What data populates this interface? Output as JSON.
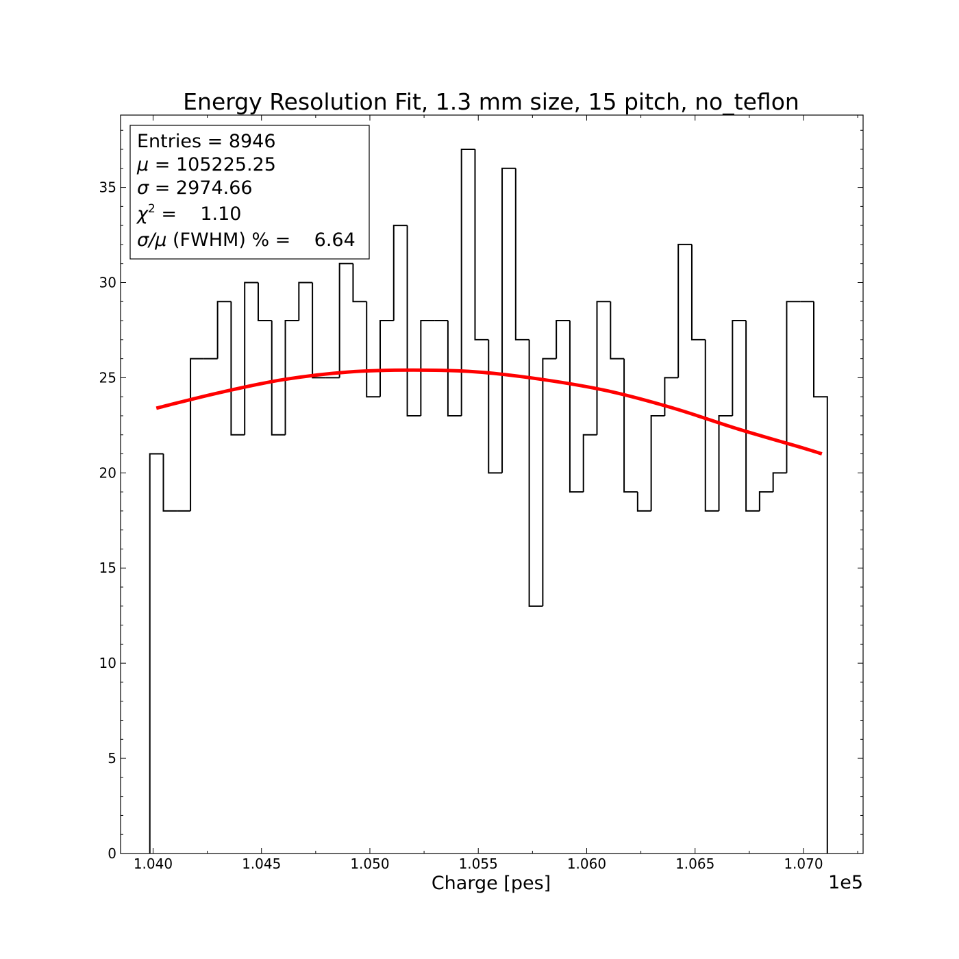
{
  "chart_data": {
    "type": "bar",
    "title": "Energy Resolution Fit, 1.3 mm size, 15 pitch, no_teflon",
    "xlabel": "Charge [pes]",
    "ylabel": "",
    "x_offset_label": "1e5",
    "x_tick_labels": [
      "1.040",
      "1.045",
      "1.050",
      "1.055",
      "1.060",
      "1.065",
      "1.070"
    ],
    "y_tick_labels": [
      "0",
      "5",
      "10",
      "15",
      "20",
      "25",
      "30",
      "35"
    ],
    "xlim": [
      103850,
      107275
    ],
    "ylim": [
      0,
      38.8
    ],
    "grid": false,
    "histogram": {
      "x_start": 103985,
      "bin_width": 62.5,
      "counts": [
        21,
        18,
        18,
        26,
        26,
        29,
        22,
        30,
        28,
        22,
        28,
        30,
        25,
        25,
        31,
        29,
        24,
        28,
        33,
        23,
        28,
        28,
        23,
        37,
        27,
        20,
        36,
        27,
        13,
        26,
        28,
        19,
        22,
        29,
        26,
        19,
        18,
        23,
        25,
        32,
        27,
        18,
        23,
        28,
        18,
        19,
        20,
        29,
        29,
        24
      ],
      "color": "#000000"
    },
    "fit": {
      "color": "#ff0000",
      "x": [
        104015,
        104300,
        104600,
        104900,
        105200,
        105500,
        105800,
        106100,
        106400,
        106700,
        107000,
        107085
      ],
      "y": [
        23.4,
        24.2,
        24.9,
        25.3,
        25.4,
        25.3,
        24.9,
        24.3,
        23.4,
        22.3,
        21.3,
        21.0
      ]
    },
    "stats_box": {
      "entries": "Entries = 8946",
      "mu_symbol": "μ",
      "mu_rest": " = 105225.25",
      "sigma_symbol": "σ",
      "sigma_rest": " = 2974.66",
      "chi_symbol": "χ",
      "chi_exp": "2",
      "chi_rest": " =    1.10",
      "res_symbol": "σ/μ",
      "res_rest": " (FWHM) % =    6.64"
    }
  }
}
